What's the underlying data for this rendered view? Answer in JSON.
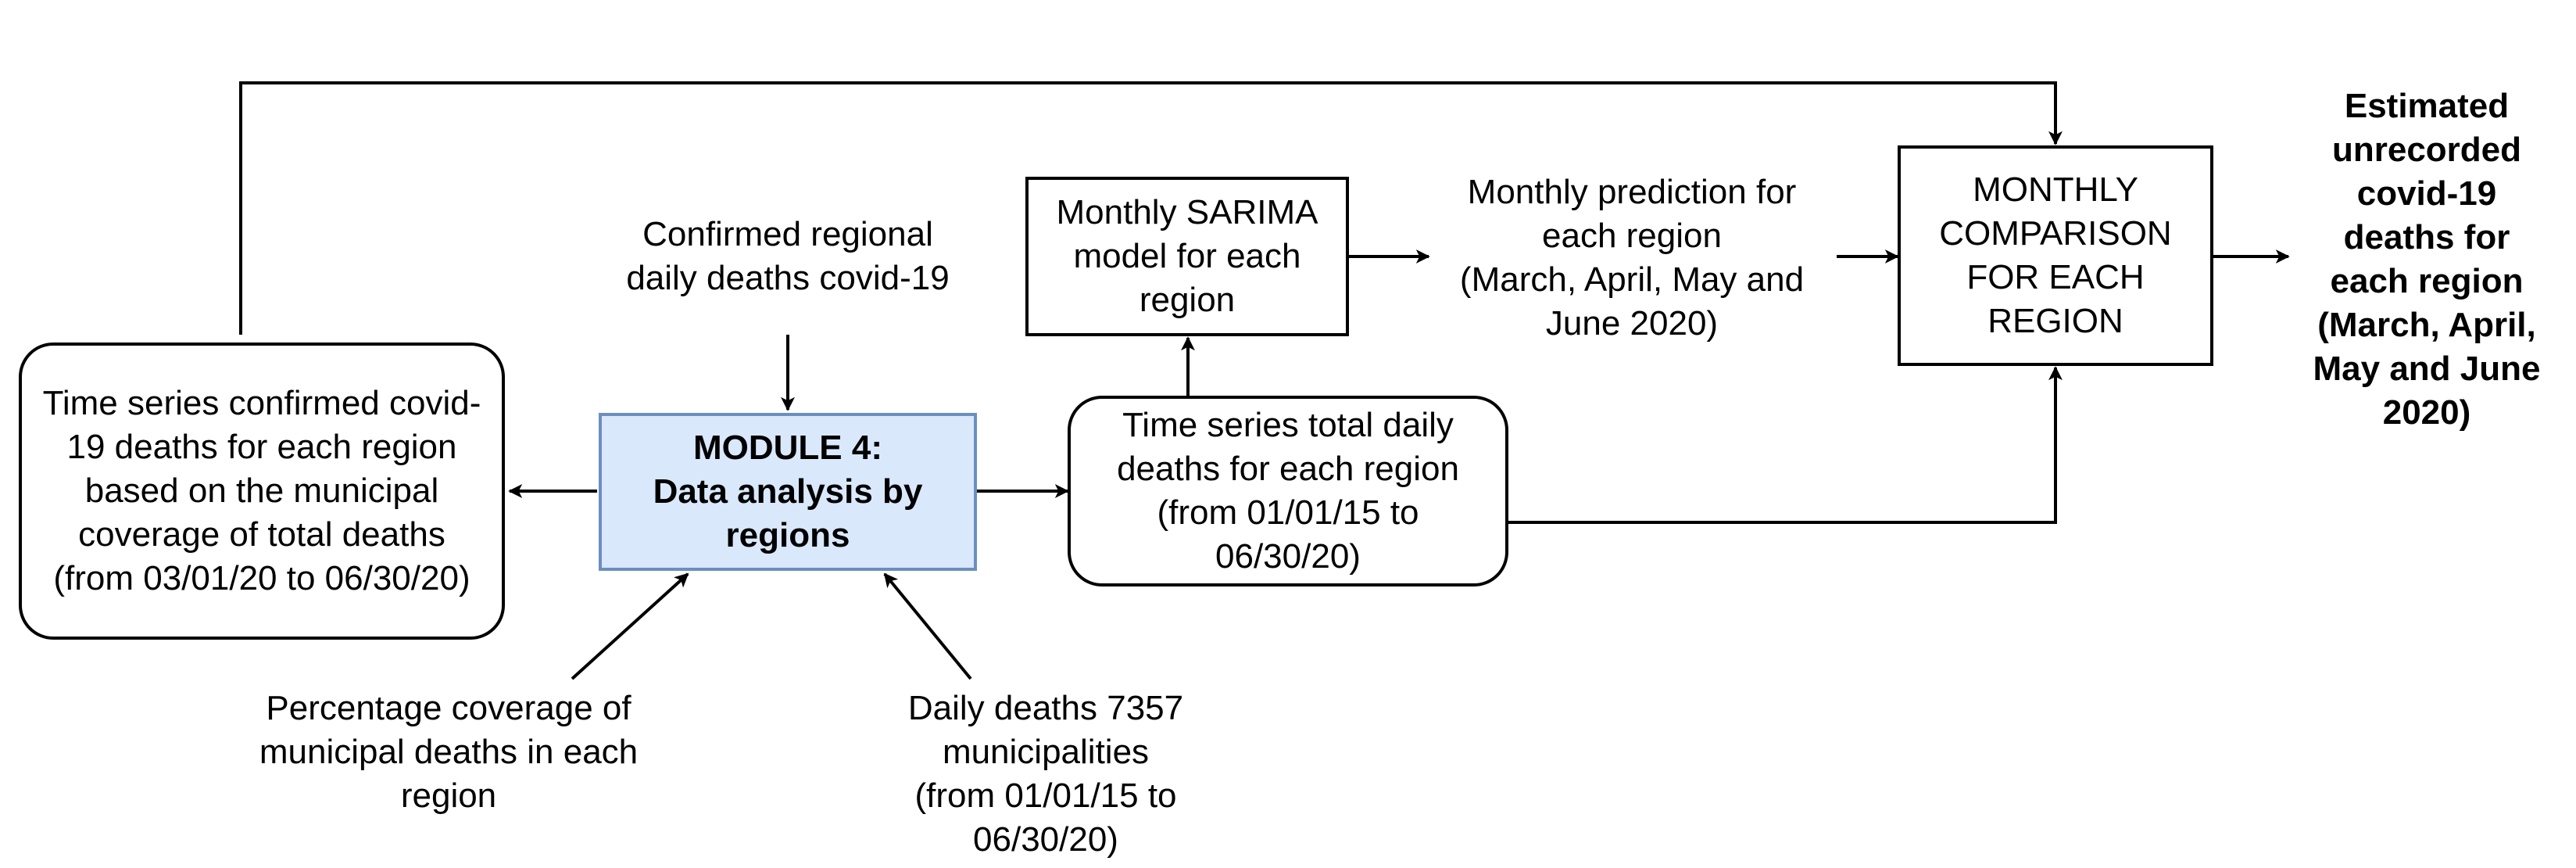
{
  "nodes": {
    "module4": "MODULE 4:\nData analysis by\nregions",
    "regional_series": "Time series confirmed covid-\n19 deaths for each region\nbased on the municipal\ncoverage of total deaths\n(from 03/01/20 to 06/30/20)",
    "total_series": "Time series total daily\ndeaths for each region\n(from 01/01/15 to\n06/30/20)",
    "sarima": "Monthly SARIMA\nmodel for each\nregion",
    "comparison": "MONTHLY\nCOMPARISON\nFOR EACH\nREGION"
  },
  "labels": {
    "confirmed_input": "Confirmed regional\ndaily deaths covid-19",
    "coverage_input": "Percentage coverage of\nmunicipal deaths in each\nregion",
    "daily_deaths_input": "Daily deaths 7357\nmunicipalities\n(from 01/01/15 to\n06/30/20)",
    "prediction": "Monthly prediction for\neach region\n(March, April, May and\nJune 2020)",
    "output": "Estimated\nunrecorded\ncovid-19\ndeaths for\neach region\n(March, April,\nMay and June\n2020)"
  }
}
